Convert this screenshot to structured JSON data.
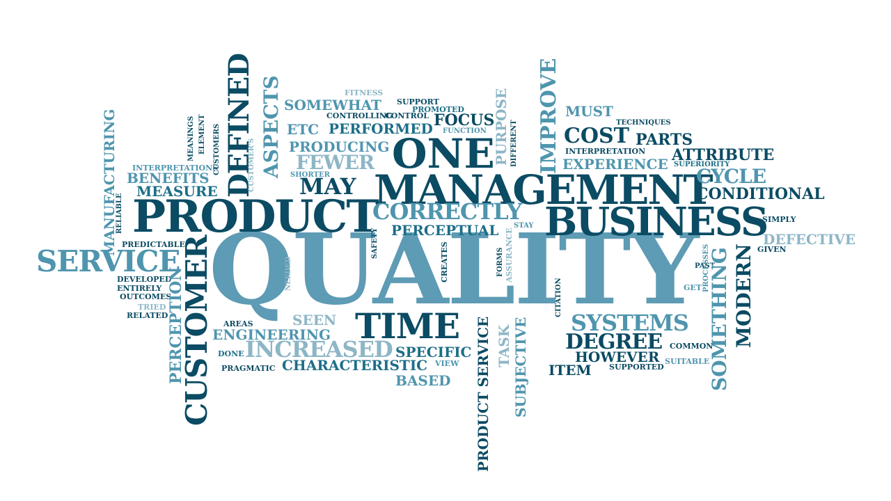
{
  "palette": {
    "dark": "#0b4b63",
    "mid": "#1d6e88",
    "light": "#4f95ae",
    "pale": "#8db6c6"
  },
  "words": [
    {
      "id": "quality",
      "text": "QUALITY"
    },
    {
      "id": "management",
      "text": "MANAGEMENT"
    },
    {
      "id": "product",
      "text": "PRODUCT"
    },
    {
      "id": "business",
      "text": "BUSINESS"
    },
    {
      "id": "one",
      "text": "ONE"
    },
    {
      "id": "service",
      "text": "SERVICE"
    },
    {
      "id": "time",
      "text": "TIME"
    },
    {
      "id": "increased",
      "text": "INCREASED"
    },
    {
      "id": "correctly",
      "text": "CORRECTLY"
    },
    {
      "id": "may",
      "text": "MAY"
    },
    {
      "id": "systems",
      "text": "SYSTEMS"
    },
    {
      "id": "degree",
      "text": "DEGREE"
    },
    {
      "id": "cost",
      "text": "COST"
    },
    {
      "id": "cycle",
      "text": "CYCLE"
    },
    {
      "id": "conditional",
      "text": "CONDITIONAL"
    },
    {
      "id": "attribute",
      "text": "ATTRIBUTE"
    },
    {
      "id": "experience",
      "text": "EXPERIENCE"
    },
    {
      "id": "parts",
      "text": "PARTS"
    },
    {
      "id": "must",
      "text": "MUST"
    },
    {
      "id": "interpretation",
      "text": "INTERPRETATION"
    },
    {
      "id": "techniques",
      "text": "TECHNIQUES"
    },
    {
      "id": "superiority",
      "text": "SUPERIORITY"
    },
    {
      "id": "somewhat",
      "text": "SOMEWHAT"
    },
    {
      "id": "fitness",
      "text": "FITNESS"
    },
    {
      "id": "support",
      "text": "SUPPORT"
    },
    {
      "id": "promoted",
      "text": "PROMOTED"
    },
    {
      "id": "controlling",
      "text": "CONTROLLING"
    },
    {
      "id": "control",
      "text": "CONTROL"
    },
    {
      "id": "focus",
      "text": "FOCUS"
    },
    {
      "id": "etc",
      "text": "ETC"
    },
    {
      "id": "performed",
      "text": "PERFORMED"
    },
    {
      "id": "function",
      "text": "FUNCTION"
    },
    {
      "id": "producing",
      "text": "PRODUCING"
    },
    {
      "id": "fewer",
      "text": "FEWER"
    },
    {
      "id": "shorter",
      "text": "SHORTER"
    },
    {
      "id": "perceptual",
      "text": "PERCEPTUAL"
    },
    {
      "id": "stay",
      "text": "STAY"
    },
    {
      "id": "interpretations",
      "text": "INTERPRETATIONS"
    },
    {
      "id": "benefits",
      "text": "BENEFITS"
    },
    {
      "id": "measure",
      "text": "MEASURE"
    },
    {
      "id": "predictable",
      "text": "PREDICTABLE"
    },
    {
      "id": "developed",
      "text": "DEVELOPED"
    },
    {
      "id": "entirely",
      "text": "ENTIRELY"
    },
    {
      "id": "outcomes",
      "text": "OUTCOMES"
    },
    {
      "id": "tried",
      "text": "TRIED"
    },
    {
      "id": "related",
      "text": "RELATED"
    },
    {
      "id": "areas",
      "text": "AREAS"
    },
    {
      "id": "seen",
      "text": "SEEN"
    },
    {
      "id": "engineering",
      "text": "ENGINEERING"
    },
    {
      "id": "done",
      "text": "DONE"
    },
    {
      "id": "pragmatic",
      "text": "PRAGMATIC"
    },
    {
      "id": "characteristic",
      "text": "CHARACTERISTIC"
    },
    {
      "id": "based",
      "text": "BASED"
    },
    {
      "id": "specific",
      "text": "SPECIFIC"
    },
    {
      "id": "view",
      "text": "VIEW"
    },
    {
      "id": "however",
      "text": "HOWEVER"
    },
    {
      "id": "item",
      "text": "ITEM"
    },
    {
      "id": "supported",
      "text": "SUPPORTED"
    },
    {
      "id": "common",
      "text": "COMMON"
    },
    {
      "id": "suitable",
      "text": "SUITABLE"
    },
    {
      "id": "simply",
      "text": "SIMPLY"
    },
    {
      "id": "defective",
      "text": "DEFECTIVE"
    },
    {
      "id": "given",
      "text": "GIVEN"
    },
    {
      "id": "past",
      "text": "PAST"
    },
    {
      "id": "get",
      "text": "GET"
    },
    {
      "id": "customer_v",
      "text": "CUSTOMER"
    },
    {
      "id": "perception",
      "text": "PERCEPTION"
    },
    {
      "id": "defined",
      "text": "DEFINED"
    },
    {
      "id": "aspects",
      "text": "ASPECTS"
    },
    {
      "id": "manufacturing",
      "text": "MANUFACTURING"
    },
    {
      "id": "meanings",
      "text": "MEANINGS"
    },
    {
      "id": "element",
      "text": "ELEMENT"
    },
    {
      "id": "customers",
      "text": "CUSTOMERS"
    },
    {
      "id": "customers_apos",
      "text": "CUSTOMER'S"
    },
    {
      "id": "reliable",
      "text": "RELIABLE"
    },
    {
      "id": "purpose",
      "text": "PURPOSE"
    },
    {
      "id": "different",
      "text": "DIFFERENT"
    },
    {
      "id": "improve",
      "text": "IMPROVE"
    },
    {
      "id": "safety",
      "text": "SAFETY"
    },
    {
      "id": "needed",
      "text": "NEEDED"
    },
    {
      "id": "creates",
      "text": "CREATES"
    },
    {
      "id": "forms",
      "text": "FORMS"
    },
    {
      "id": "assurance",
      "text": "ASSURANCE"
    },
    {
      "id": "product_service",
      "text": "PRODUCT SERVICE"
    },
    {
      "id": "task",
      "text": "TASK"
    },
    {
      "id": "subjective",
      "text": "SUBJECTIVE"
    },
    {
      "id": "citation",
      "text": "CITATION"
    },
    {
      "id": "processes",
      "text": "PROCESSES"
    },
    {
      "id": "something",
      "text": "SOMETHING"
    },
    {
      "id": "modern",
      "text": "MODERN"
    }
  ]
}
